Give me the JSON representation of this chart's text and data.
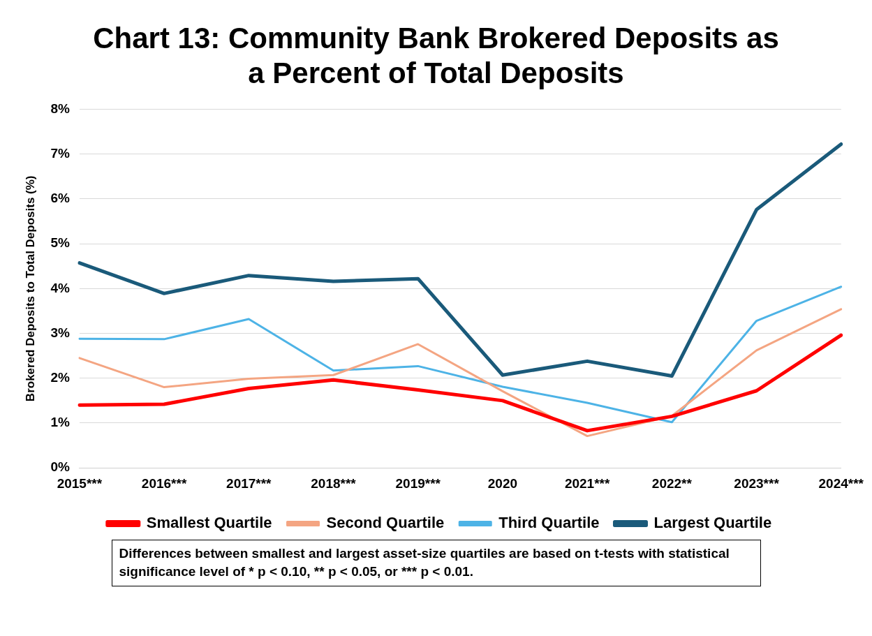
{
  "chart_data": {
    "type": "line",
    "title": "Chart 13: Community Bank Brokered Deposits as a Percent of Total Deposits",
    "ylabel": "Brokered Deposits to Total Deposits (%)",
    "categories": [
      "2015***",
      "2016***",
      "2017***",
      "2018***",
      "2019***",
      "2020",
      "2021***",
      "2022**",
      "2023***",
      "2024***"
    ],
    "series": [
      {
        "name": "Smallest Quartile",
        "color": "#ff0000",
        "values": [
          1.4,
          1.42,
          1.77,
          1.96,
          1.74,
          1.5,
          0.83,
          1.15,
          1.72,
          2.96
        ]
      },
      {
        "name": "Second Quartile",
        "color": "#f4a582",
        "values": [
          2.45,
          1.8,
          1.99,
          2.07,
          2.76,
          1.71,
          0.71,
          1.16,
          2.62,
          3.54
        ]
      },
      {
        "name": "Third Quartile",
        "color": "#4db3e6",
        "values": [
          2.88,
          2.87,
          3.32,
          2.17,
          2.27,
          1.81,
          1.45,
          1.02,
          3.28,
          4.04
        ]
      },
      {
        "name": "Largest Quartile",
        "color": "#1a5a7a",
        "values": [
          4.57,
          3.89,
          4.29,
          4.16,
          4.22,
          2.07,
          2.38,
          2.05,
          5.76,
          7.22
        ]
      }
    ],
    "ylim": [
      0,
      8
    ],
    "yticks": [
      {
        "value": 0,
        "label": "0%"
      },
      {
        "value": 1,
        "label": "1%"
      },
      {
        "value": 2,
        "label": "2%"
      },
      {
        "value": 3,
        "label": "3%"
      },
      {
        "value": 4,
        "label": "4%"
      },
      {
        "value": 5,
        "label": "5%"
      },
      {
        "value": 6,
        "label": "6%"
      },
      {
        "value": 7,
        "label": "7%"
      },
      {
        "value": 8,
        "label": "8%"
      }
    ],
    "grid": "y",
    "legend": "bottom",
    "marker": "none",
    "line_style": "solid",
    "annotations": [
      "Differences between smallest and largest asset-size quartiles are based on t-tests with statistical significance level of * p < 0.10, ** p < 0.05, or *** p < 0.01."
    ]
  }
}
